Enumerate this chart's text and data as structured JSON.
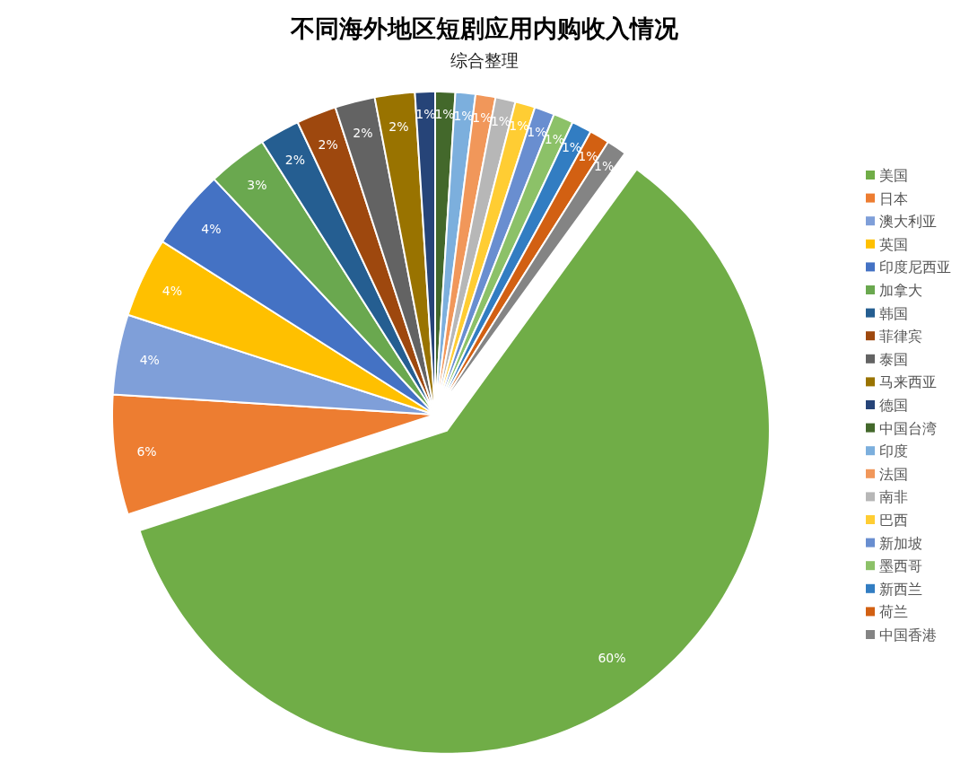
{
  "chart_data": {
    "type": "pie",
    "title": "不同海外地区短剧应用内购收入情况",
    "subtitle": "综合整理",
    "categories": [
      "美国",
      "日本",
      "澳大利亚",
      "英国",
      "印度尼西亚",
      "加拿大",
      "韩国",
      "菲律宾",
      "泰国",
      "马来西亚",
      "德国",
      "中国台湾",
      "印度",
      "法国",
      "南非",
      "巴西",
      "新加坡",
      "墨西哥",
      "新西兰",
      "荷兰",
      "中国香港"
    ],
    "values": [
      60,
      6,
      4,
      4,
      4,
      3,
      2,
      2,
      2,
      2,
      1,
      1,
      1,
      1,
      1,
      1,
      1,
      1,
      1,
      1,
      1
    ],
    "value_labels": [
      "60%",
      "6%",
      "4%",
      "4%",
      "4%",
      "3%",
      "2%",
      "2%",
      "2%",
      "2%",
      "1%",
      "1%",
      "1%",
      "1%",
      "1%",
      "1%",
      "1%",
      "1%",
      "1%",
      "1%",
      "1%"
    ],
    "colors": [
      "#70ad47",
      "#ed7d31",
      "#7f9fd9",
      "#ffc000",
      "#4472c4",
      "#6aa84f",
      "#255e91",
      "#9e480e",
      "#636363",
      "#997300",
      "#264478",
      "#43682b",
      "#7cafdd",
      "#f1975a",
      "#b7b7b7",
      "#ffcd33",
      "#698ed0",
      "#8cc168",
      "#327dc2",
      "#d26012",
      "#848484"
    ],
    "legend": "right"
  }
}
